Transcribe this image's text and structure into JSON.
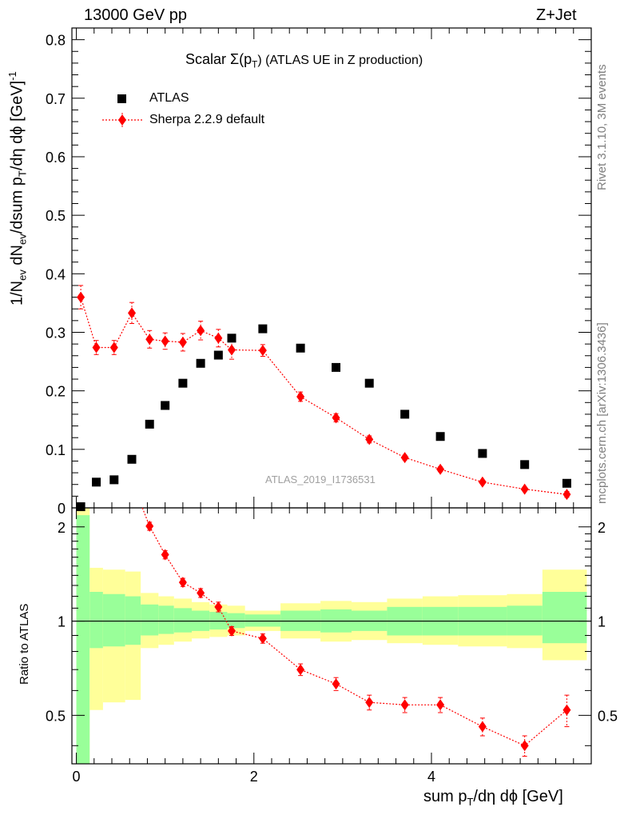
{
  "header": {
    "left": "13000 GeV pp",
    "right": "Z+Jet"
  },
  "side": {
    "rivet": "Rivet 3.1.10,  3M events",
    "mcplots": "mcplots.cern.ch [arXiv:1306.3436]"
  },
  "watermark": "ATLAS_2019_I1736531",
  "chart_data": [
    {
      "type": "scatter",
      "title": "Scalar Σ(pT) (ATLAS UE in Z production)",
      "title_parts": {
        "prefix": "Scalar ",
        "sigma": "Σ(p",
        "sub": "T",
        "suffix": ") (ATLAS UE in Z production)"
      },
      "ylabel": "1/Nev dNev/dsum pT/dη dϕ [GeV]^-1",
      "ylabel_parts": {
        "a": "1/N",
        "ev1": "ev",
        "b": " dN",
        "ev2": "ev",
        "c": "/dsum p",
        "t": "T",
        "d": "/dη dϕ  [GeV]",
        "sup": "-1"
      },
      "xlim": [
        -0.05,
        5.8
      ],
      "ylim": [
        0,
        0.82
      ],
      "yticks": [
        "0",
        "0.1",
        "0.2",
        "0.3",
        "0.4",
        "0.5",
        "0.6",
        "0.7",
        "0.8"
      ],
      "legend_position": "top-left",
      "series": [
        {
          "name": "ATLAS",
          "color": "#000000",
          "marker": "square",
          "x": [
            0.05,
            0.225,
            0.425,
            0.625,
            0.825,
            1.0,
            1.2,
            1.4,
            1.6,
            1.75,
            2.1,
            2.525,
            2.925,
            3.3,
            3.7,
            4.1,
            4.575,
            5.05,
            5.525
          ],
          "y": [
            0.002,
            0.044,
            0.048,
            0.083,
            0.143,
            0.175,
            0.213,
            0.247,
            0.261,
            0.29,
            0.306,
            0.273,
            0.24,
            0.213,
            0.16,
            0.122,
            0.093,
            0.074,
            0.042
          ]
        },
        {
          "name": "Sherpa 2.2.9 default",
          "color": "#ff0000",
          "marker": "diamond",
          "x": [
            0.05,
            0.225,
            0.425,
            0.625,
            0.825,
            1.0,
            1.2,
            1.4,
            1.6,
            1.75,
            2.1,
            2.525,
            2.925,
            3.3,
            3.7,
            4.1,
            4.575,
            5.05,
            5.525
          ],
          "y": [
            0.36,
            0.274,
            0.274,
            0.333,
            0.288,
            0.285,
            0.283,
            0.303,
            0.29,
            0.27,
            0.269,
            0.19,
            0.154,
            0.117,
            0.086,
            0.066,
            0.044,
            0.032,
            0.023
          ],
          "yerr": [
            0.02,
            0.012,
            0.012,
            0.018,
            0.015,
            0.014,
            0.015,
            0.016,
            0.015,
            0.016,
            0.01,
            0.008,
            0.007,
            0.006,
            0.004,
            0.004,
            0.003,
            0.003,
            0.005
          ]
        }
      ]
    },
    {
      "type": "scatter",
      "title": "",
      "ylabel": "Ratio to ATLAS",
      "xlabel": "sum pT/dη dϕ [GeV]",
      "xlabel_parts": {
        "a": "sum p",
        "t": "T",
        "b": "/dη dϕ [GeV]"
      },
      "xlim": [
        -0.05,
        5.8
      ],
      "ylim": [
        0.35,
        2.3
      ],
      "yticks": [
        "0.5",
        "1",
        "2"
      ],
      "xticks": [
        "0",
        "2",
        "4"
      ],
      "bands": {
        "edges": [
          0.0,
          0.15,
          0.3,
          0.55,
          0.725,
          0.925,
          1.1,
          1.3,
          1.5,
          1.7,
          1.9,
          2.3,
          2.75,
          3.1,
          3.5,
          3.9,
          4.3,
          4.85,
          5.25,
          5.75
        ],
        "yellow_lo": [
          0.0,
          0.52,
          0.55,
          0.56,
          0.82,
          0.84,
          0.86,
          0.88,
          0.89,
          0.9,
          0.93,
          0.88,
          0.86,
          0.87,
          0.85,
          0.84,
          0.83,
          0.82,
          0.75
        ],
        "yellow_hi": [
          2.3,
          1.48,
          1.46,
          1.44,
          1.23,
          1.2,
          1.18,
          1.15,
          1.13,
          1.12,
          1.08,
          1.14,
          1.16,
          1.15,
          1.18,
          1.2,
          1.21,
          1.22,
          1.46
        ],
        "green_lo": [
          0.0,
          0.82,
          0.83,
          0.84,
          0.9,
          0.91,
          0.92,
          0.93,
          0.94,
          0.95,
          0.96,
          0.93,
          0.92,
          0.93,
          0.9,
          0.9,
          0.9,
          0.9,
          0.85
        ],
        "green_hi": [
          2.18,
          1.24,
          1.22,
          1.2,
          1.13,
          1.12,
          1.1,
          1.08,
          1.07,
          1.06,
          1.05,
          1.08,
          1.09,
          1.08,
          1.11,
          1.11,
          1.11,
          1.12,
          1.24
        ],
        "yellow_color": "#ffff99",
        "green_color": "#99ff99"
      },
      "series": [
        {
          "name": "Sherpa 2.2.9 default",
          "color": "#ff0000",
          "marker": "diamond",
          "x": [
            0.825,
            1.0,
            1.2,
            1.4,
            1.6,
            1.75,
            2.1,
            2.525,
            2.925,
            3.3,
            3.7,
            4.1,
            4.575,
            5.05,
            5.525
          ],
          "y": [
            2.01,
            1.63,
            1.33,
            1.23,
            1.11,
            0.93,
            0.88,
            0.7,
            0.63,
            0.55,
            0.54,
            0.54,
            0.46,
            0.4,
            0.52
          ],
          "yerr": [
            0.06,
            0.05,
            0.04,
            0.04,
            0.04,
            0.03,
            0.03,
            0.03,
            0.03,
            0.03,
            0.03,
            0.03,
            0.03,
            0.03,
            0.06
          ]
        }
      ]
    }
  ]
}
